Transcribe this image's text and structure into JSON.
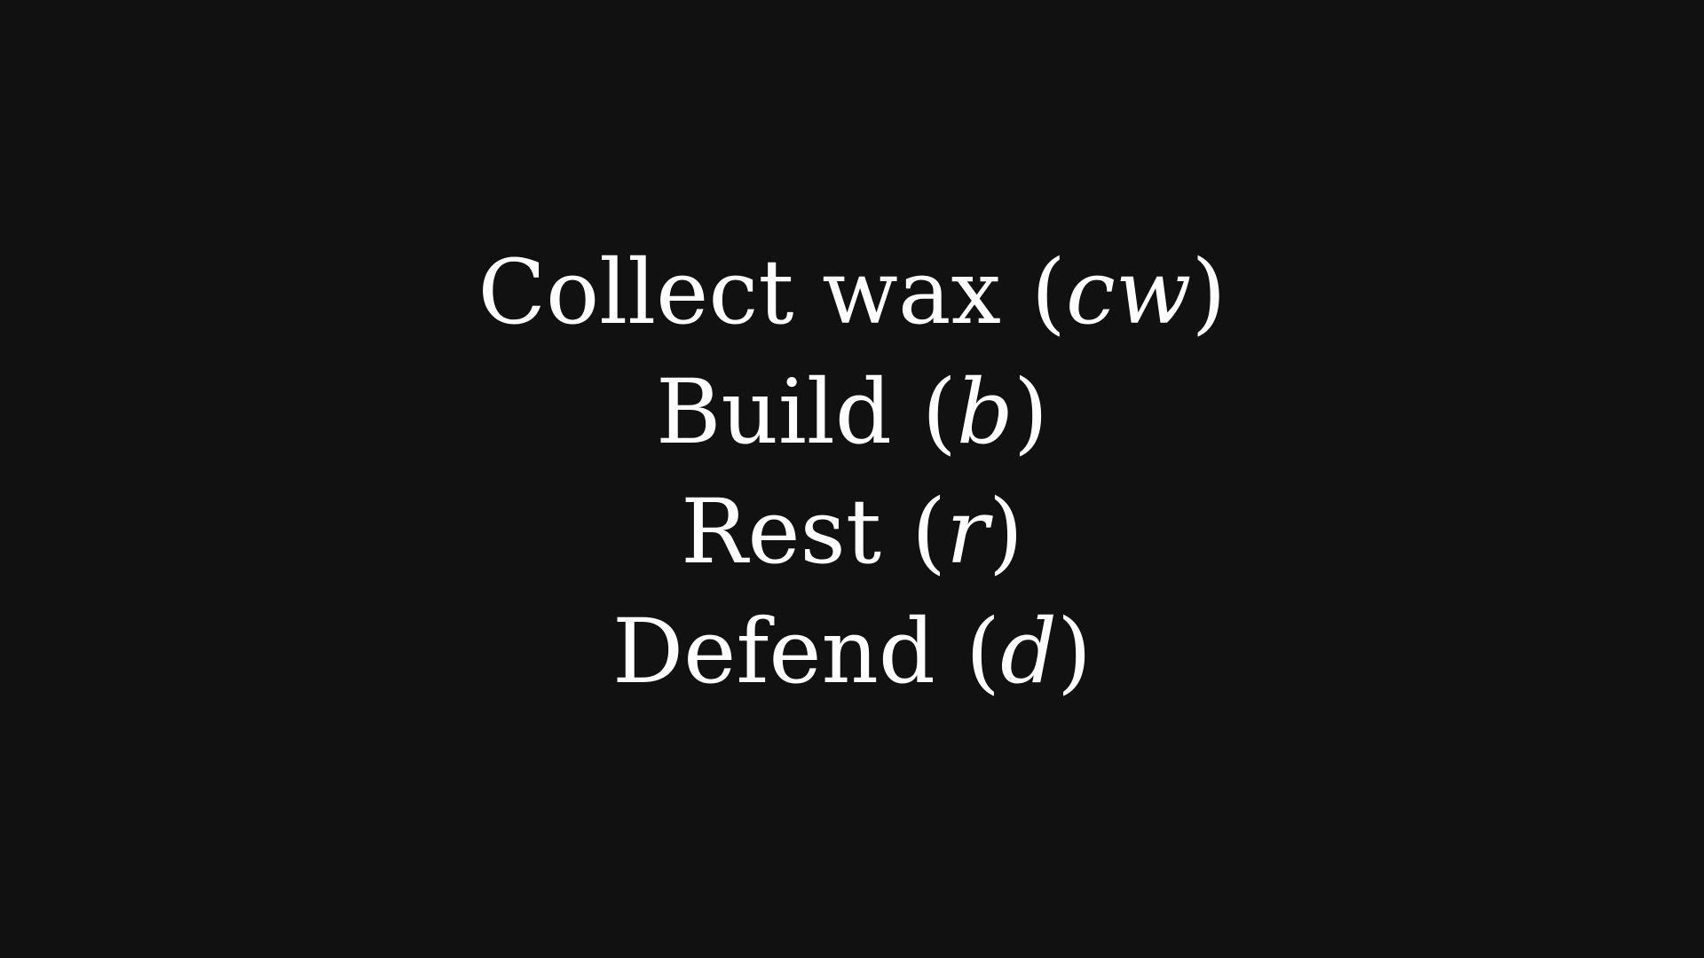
{
  "activities": [
    {
      "label": "Collect wax",
      "symbol": "cw"
    },
    {
      "label": "Build",
      "symbol": "b"
    },
    {
      "label": "Rest",
      "symbol": "r"
    },
    {
      "label": "Defend",
      "symbol": "d"
    }
  ],
  "colors": {
    "background": "#111111",
    "text": "#ffffff"
  }
}
